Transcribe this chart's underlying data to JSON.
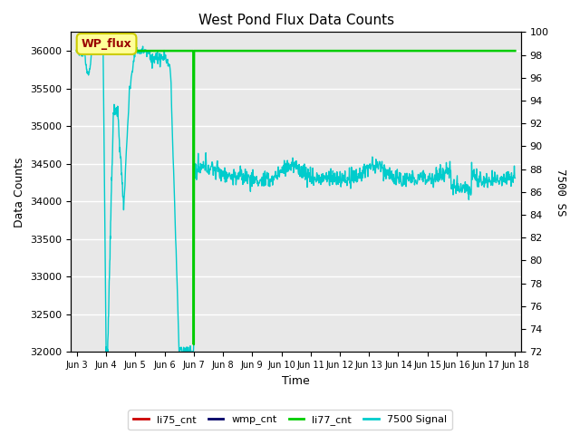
{
  "title": "West Pond Flux Data Counts",
  "xlabel": "Time",
  "ylabel_left": "Data Counts",
  "ylabel_right": "7500 SS",
  "ylim_left": [
    32000,
    36250
  ],
  "ylim_right": [
    72,
    100
  ],
  "yticks_left": [
    32000,
    32500,
    33000,
    33500,
    34000,
    34500,
    35000,
    35500,
    36000
  ],
  "yticks_right": [
    72,
    74,
    76,
    78,
    80,
    82,
    84,
    86,
    88,
    90,
    92,
    94,
    96,
    98,
    100
  ],
  "background_color": "#e8e8e8",
  "annotation_text": "WP_flux",
  "legend_entries": [
    "li75_cnt",
    "wmp_cnt",
    "li77_cnt",
    "7500 Signal"
  ],
  "legend_colors": [
    "#cc0000",
    "#000066",
    "#00cc00",
    "#00cccc"
  ],
  "figsize": [
    6.4,
    4.8
  ],
  "dpi": 100
}
